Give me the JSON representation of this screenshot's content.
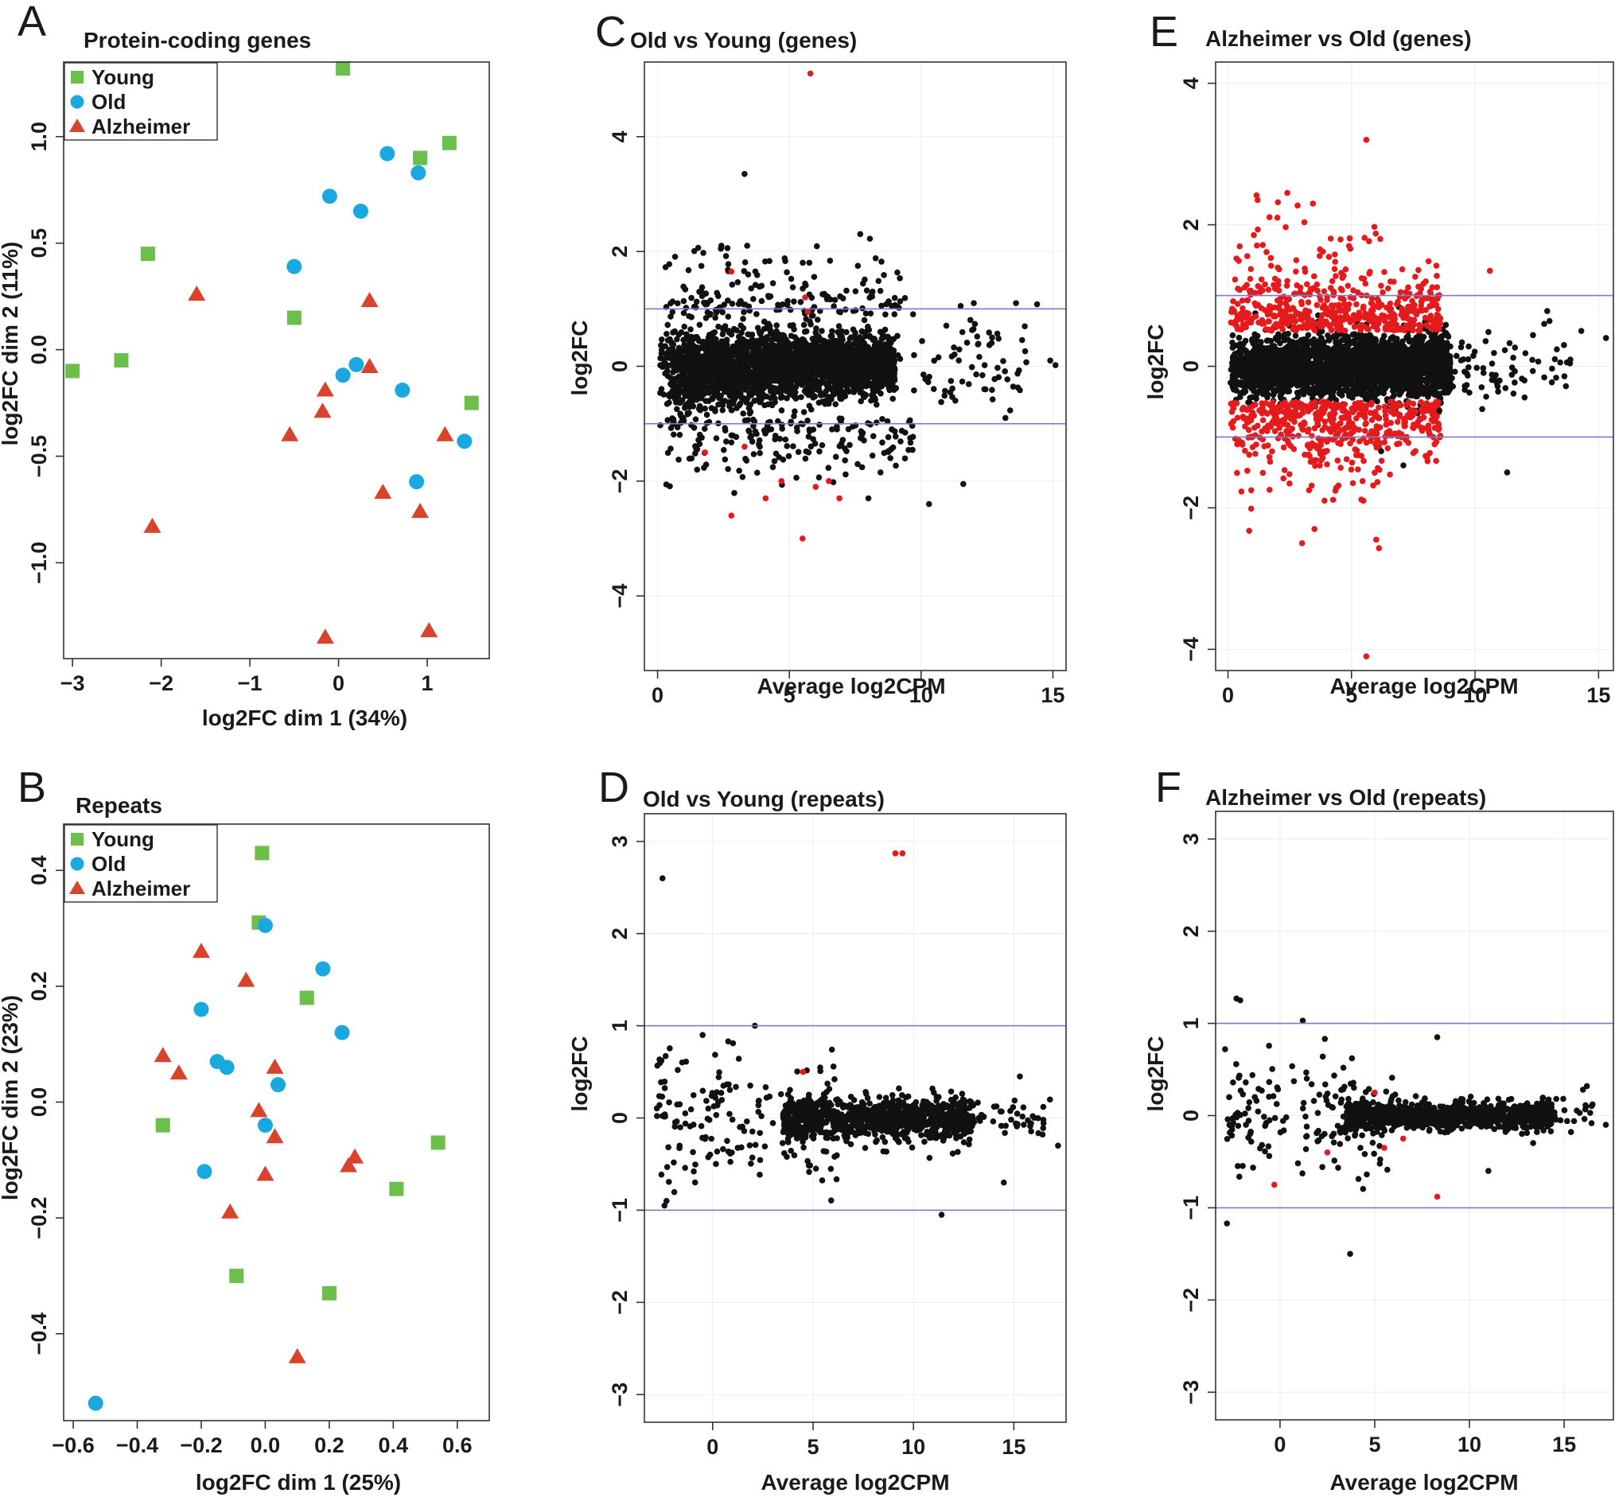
{
  "figure": {
    "panels": [
      {
        "id": "A",
        "letter": "A",
        "title": "Protein-coding genes",
        "xlabel": "log2FC dim 1 (34%)",
        "ylabel": "log2FC dim 2 (11%)"
      },
      {
        "id": "B",
        "letter": "B",
        "title": "Repeats",
        "xlabel": "log2FC dim 1 (25%)",
        "ylabel": "log2FC dim 2 (23%)"
      },
      {
        "id": "C",
        "letter": "C",
        "title": "Old vs Young (genes)",
        "xlabel": "Average log2CPM",
        "ylabel": "log2FC"
      },
      {
        "id": "D",
        "letter": "D",
        "title": "Old vs Young (repeats)",
        "xlabel": "Average log2CPM",
        "ylabel": "log2FC"
      },
      {
        "id": "E",
        "letter": "E",
        "title": "Alzheimer vs Old (genes)",
        "xlabel": "Average log2CPM",
        "ylabel": "log2FC"
      },
      {
        "id": "F",
        "letter": "F",
        "title": "Alzheimer vs Old (repeats)",
        "xlabel": "Average log2CPM",
        "ylabel": "log2FC"
      }
    ]
  },
  "colors": {
    "young": "#6cbf4a",
    "old": "#1ba8e0",
    "alzheimer": "#d9432b",
    "sig": "#e41a1c",
    "ns": "#111111",
    "hline": "#7b7bc8"
  },
  "chart_data": [
    {
      "id": "A",
      "type": "scatter",
      "title": "Protein-coding genes",
      "xlabel": "log2FC dim 1 (34%)",
      "ylabel": "log2FC dim 2 (11%)",
      "xlim": [
        -3.1,
        1.7
      ],
      "ylim": [
        -1.45,
        1.35
      ],
      "xticks": [
        -3,
        -2,
        -1,
        0,
        1
      ],
      "yticks": [
        -1.0,
        -0.5,
        0.0,
        0.5,
        1.0
      ],
      "yticklabels": [
        "−1.0",
        "−0.5",
        "0.0",
        "0.5",
        "1.0"
      ],
      "xticklabels": [
        "−3",
        "−2",
        "−1",
        "0",
        "1"
      ],
      "legend": {
        "position": "top-left",
        "entries": [
          "Young",
          "Old",
          "Alzheimer"
        ]
      },
      "series": [
        {
          "name": "Young",
          "marker": "square",
          "color": "#6cbf4a",
          "points": [
            [
              -3.0,
              -0.1
            ],
            [
              -2.45,
              -0.05
            ],
            [
              -2.15,
              0.45
            ],
            [
              -0.5,
              0.15
            ],
            [
              0.05,
              1.32
            ],
            [
              0.92,
              0.9
            ],
            [
              1.25,
              0.97
            ],
            [
              1.5,
              -0.25
            ]
          ]
        },
        {
          "name": "Old",
          "marker": "circle",
          "color": "#1ba8e0",
          "points": [
            [
              -0.5,
              0.39
            ],
            [
              -0.1,
              0.72
            ],
            [
              0.25,
              0.65
            ],
            [
              0.55,
              0.92
            ],
            [
              0.9,
              0.83
            ],
            [
              0.05,
              -0.12
            ],
            [
              0.2,
              -0.07
            ],
            [
              0.72,
              -0.19
            ],
            [
              1.42,
              -0.43
            ],
            [
              0.88,
              -0.62
            ]
          ]
        },
        {
          "name": "Alzheimer",
          "marker": "triangle",
          "color": "#d9432b",
          "points": [
            [
              -1.6,
              0.26
            ],
            [
              -2.1,
              -0.83
            ],
            [
              -0.55,
              -0.4
            ],
            [
              -0.15,
              -0.19
            ],
            [
              -0.18,
              -0.29
            ],
            [
              0.35,
              0.23
            ],
            [
              0.35,
              -0.08
            ],
            [
              1.2,
              -0.4
            ],
            [
              0.5,
              -0.67
            ],
            [
              0.92,
              -0.76
            ],
            [
              -0.15,
              -1.35
            ],
            [
              1.02,
              -1.32
            ]
          ]
        }
      ]
    },
    {
      "id": "B",
      "type": "scatter",
      "title": "Repeats",
      "xlabel": "log2FC dim 1 (25%)",
      "ylabel": "log2FC dim 2 (23%)",
      "xlim": [
        -0.63,
        0.7
      ],
      "ylim": [
        -0.55,
        0.48
      ],
      "xticks": [
        -0.6,
        -0.4,
        -0.2,
        0.0,
        0.2,
        0.4,
        0.6
      ],
      "yticks": [
        -0.4,
        -0.2,
        0.0,
        0.2,
        0.4
      ],
      "xticklabels": [
        "−0.6",
        "−0.4",
        "−0.2",
        "0.0",
        "0.2",
        "0.4",
        "0.6"
      ],
      "yticklabels": [
        "−0.4",
        "−0.2",
        "0.0",
        "0.2",
        "0.4"
      ],
      "legend": {
        "position": "top-left",
        "entries": [
          "Young",
          "Old",
          "Alzheimer"
        ]
      },
      "series": [
        {
          "name": "Young",
          "marker": "square",
          "color": "#6cbf4a",
          "points": [
            [
              -0.01,
              0.43
            ],
            [
              -0.02,
              0.31
            ],
            [
              0.13,
              0.18
            ],
            [
              -0.32,
              -0.04
            ],
            [
              0.54,
              -0.07
            ],
            [
              0.41,
              -0.15
            ],
            [
              -0.09,
              -0.3
            ],
            [
              0.2,
              -0.33
            ]
          ]
        },
        {
          "name": "Old",
          "marker": "circle",
          "color": "#1ba8e0",
          "points": [
            [
              0.0,
              0.305
            ],
            [
              0.18,
              0.23
            ],
            [
              -0.2,
              0.16
            ],
            [
              0.24,
              0.12
            ],
            [
              -0.15,
              0.07
            ],
            [
              -0.12,
              0.06
            ],
            [
              0.04,
              0.03
            ],
            [
              0.0,
              -0.04
            ],
            [
              -0.19,
              -0.12
            ],
            [
              -0.53,
              -0.52
            ]
          ]
        },
        {
          "name": "Alzheimer",
          "marker": "triangle",
          "color": "#d9432b",
          "points": [
            [
              -0.2,
              0.26
            ],
            [
              -0.06,
              0.21
            ],
            [
              -0.32,
              0.08
            ],
            [
              -0.27,
              0.05
            ],
            [
              0.03,
              0.06
            ],
            [
              -0.02,
              -0.015
            ],
            [
              0.03,
              -0.06
            ],
            [
              0.0,
              -0.125
            ],
            [
              0.26,
              -0.11
            ],
            [
              0.28,
              -0.095
            ],
            [
              -0.11,
              -0.19
            ],
            [
              0.1,
              -0.44
            ]
          ]
        }
      ]
    },
    {
      "id": "C",
      "type": "scatter",
      "title": "Old vs Young (genes)",
      "xlabel": "Average log2CPM",
      "ylabel": "log2FC",
      "xlim": [
        -0.5,
        15.5
      ],
      "ylim": [
        -5.3,
        5.3
      ],
      "xticks": [
        0,
        5,
        10,
        15
      ],
      "yticks": [
        -4,
        -2,
        0,
        2,
        4
      ],
      "xticklabels": [
        "0",
        "5",
        "10",
        "15"
      ],
      "yticklabels": [
        "−4",
        "−2",
        "0",
        "2",
        "4"
      ],
      "hlines": [
        1,
        -1
      ],
      "point_cloud": {
        "x_range": [
          0.1,
          15.2
        ],
        "bulk_x": [
          0.1,
          9
        ],
        "bulk_y": [
          -1,
          1
        ],
        "tail_x": [
          9,
          14
        ],
        "tail_y": [
          -1.3,
          1.3
        ]
      },
      "series": [
        {
          "name": "",
          "color": "#111111",
          "points": [
            [
              3.3,
              3.35
            ],
            [
              2.4,
              2.05
            ],
            [
              3.4,
              2.1
            ],
            [
              7.6,
              1.75
            ],
            [
              11.5,
              1.05
            ],
            [
              12.0,
              1.1
            ],
            [
              13.6,
              1.1
            ],
            [
              14.4,
              1.08
            ],
            [
              14.9,
              0.1
            ],
            [
              15.1,
              0.02
            ],
            [
              12.4,
              -0.4
            ],
            [
              13.2,
              -0.9
            ],
            [
              11.6,
              -2.05
            ],
            [
              10.3,
              -2.4
            ],
            [
              1.5,
              -1.8
            ],
            [
              8.0,
              -2.3
            ]
          ]
        },
        {
          "name": "",
          "color": "#e41a1c",
          "points": [
            [
              5.8,
              5.1
            ],
            [
              2.8,
              1.65
            ],
            [
              5.6,
              1.2
            ],
            [
              5.7,
              0.95
            ],
            [
              1.8,
              -1.5
            ],
            [
              2.8,
              -2.6
            ],
            [
              4.1,
              -2.3
            ],
            [
              4.7,
              -2.0
            ],
            [
              5.5,
              -3.0
            ],
            [
              6.5,
              -2.0
            ],
            [
              6.9,
              -2.3
            ],
            [
              6.0,
              -2.1
            ],
            [
              3.3,
              -1.4
            ]
          ]
        }
      ]
    },
    {
      "id": "D",
      "type": "scatter",
      "title": "Old vs Young (repeats)",
      "xlabel": "Average log2CPM",
      "ylabel": "log2FC",
      "xlim": [
        -3.4,
        17.6
      ],
      "ylim": [
        -3.3,
        3.3
      ],
      "xticks": [
        0,
        5,
        10,
        15
      ],
      "yticks": [
        -3,
        -2,
        -1,
        0,
        1,
        2,
        3
      ],
      "xticklabels": [
        "0",
        "5",
        "10",
        "15"
      ],
      "yticklabels": [
        "−3",
        "−2",
        "−1",
        "0",
        "1",
        "2",
        "3"
      ],
      "hlines": [
        1,
        -1
      ],
      "point_cloud": {
        "x_range": [
          -2.8,
          17.2
        ],
        "bulk_x": [
          3.5,
          13
        ],
        "bulk_y": [
          -0.25,
          0.25
        ]
      },
      "series": [
        {
          "name": "",
          "color": "#111111",
          "points": [
            [
              -2.5,
              2.6
            ],
            [
              -0.5,
              0.9
            ],
            [
              2.1,
              1.0
            ],
            [
              -2.3,
              -0.9
            ],
            [
              -2.4,
              -0.95
            ],
            [
              11.4,
              -1.05
            ],
            [
              14.5,
              -0.7
            ],
            [
              16.8,
              0.2
            ],
            [
              17.2,
              -0.3
            ],
            [
              15.3,
              0.45
            ]
          ]
        },
        {
          "name": "",
          "color": "#e41a1c",
          "points": [
            [
              9.1,
              2.87
            ],
            [
              9.45,
              2.87
            ],
            [
              4.5,
              0.5
            ]
          ]
        }
      ]
    },
    {
      "id": "E",
      "type": "scatter",
      "title": "Alzheimer vs Old (genes)",
      "xlabel": "Average log2CPM",
      "ylabel": "log2FC",
      "xlim": [
        -0.5,
        15.6
      ],
      "ylim": [
        -4.3,
        4.3
      ],
      "xticks": [
        0,
        5,
        10,
        15
      ],
      "yticks": [
        -4,
        -2,
        0,
        2,
        4
      ],
      "xticklabels": [
        "0",
        "5",
        "10",
        "15"
      ],
      "yticklabels": [
        "−4",
        "−2",
        "0",
        "2",
        "4"
      ],
      "hlines": [
        1,
        -1
      ],
      "point_cloud": {
        "x_range": [
          0.1,
          15.4
        ],
        "bulk_x": [
          0.1,
          9
        ],
        "bulk_y": [
          -0.55,
          0.55
        ],
        "sig_x": [
          0.1,
          9
        ],
        "sig_y_abs": [
          0.55,
          1.6
        ]
      },
      "series": [
        {
          "name": "",
          "color": "#111111",
          "points": [
            [
              15.3,
              0.4
            ],
            [
              14.3,
              0.5
            ],
            [
              12.8,
              0.6
            ],
            [
              13.6,
              0.3
            ],
            [
              12.0,
              -0.2
            ],
            [
              11.3,
              -1.5
            ],
            [
              6.2,
              -1.2
            ],
            [
              7.1,
              -1.4
            ]
          ]
        },
        {
          "name": "",
          "color": "#e41a1c",
          "points": [
            [
              5.6,
              3.2
            ],
            [
              2.4,
              2.45
            ],
            [
              1.2,
              2.35
            ],
            [
              2.0,
              2.1
            ],
            [
              4.9,
              1.7
            ],
            [
              10.6,
              1.35
            ],
            [
              3.0,
              -2.5
            ],
            [
              3.5,
              -2.3
            ],
            [
              5.6,
              -4.1
            ],
            [
              6.0,
              -2.45
            ]
          ]
        }
      ]
    },
    {
      "id": "F",
      "type": "scatter",
      "title": "Alzheimer vs Old (repeats)",
      "xlabel": "Average log2CPM",
      "ylabel": "log2FC",
      "xlim": [
        -3.4,
        17.6
      ],
      "ylim": [
        -3.3,
        3.3
      ],
      "xticks": [
        0,
        5,
        10,
        15
      ],
      "yticks": [
        -3,
        -2,
        -1,
        0,
        1,
        2,
        3
      ],
      "xticklabels": [
        "0",
        "5",
        "10",
        "15"
      ],
      "yticklabels": [
        "−3",
        "−2",
        "−1",
        "0",
        "1",
        "2",
        "3"
      ],
      "hlines": [
        1,
        -1
      ],
      "point_cloud": {
        "x_range": [
          -2.8,
          17.2
        ],
        "bulk_x": [
          3.5,
          14.5
        ],
        "bulk_y": [
          -0.18,
          0.18
        ]
      },
      "series": [
        {
          "name": "",
          "color": "#111111",
          "points": [
            [
              -2.3,
              1.27
            ],
            [
              -2.1,
              1.25
            ],
            [
              1.2,
              1.03
            ],
            [
              -2.8,
              -1.17
            ],
            [
              -2.9,
              0.72
            ],
            [
              3.7,
              -1.5
            ],
            [
              8.3,
              0.85
            ],
            [
              16.2,
              0.32
            ],
            [
              17.2,
              -0.1
            ],
            [
              11.0,
              -0.6
            ]
          ]
        },
        {
          "name": "",
          "color": "#e41a1c",
          "points": [
            [
              -0.3,
              -0.75
            ],
            [
              2.5,
              -0.4
            ],
            [
              8.3,
              -0.88
            ],
            [
              5.0,
              0.25
            ],
            [
              5.5,
              -0.35
            ],
            [
              6.5,
              -0.25
            ]
          ]
        }
      ]
    }
  ]
}
